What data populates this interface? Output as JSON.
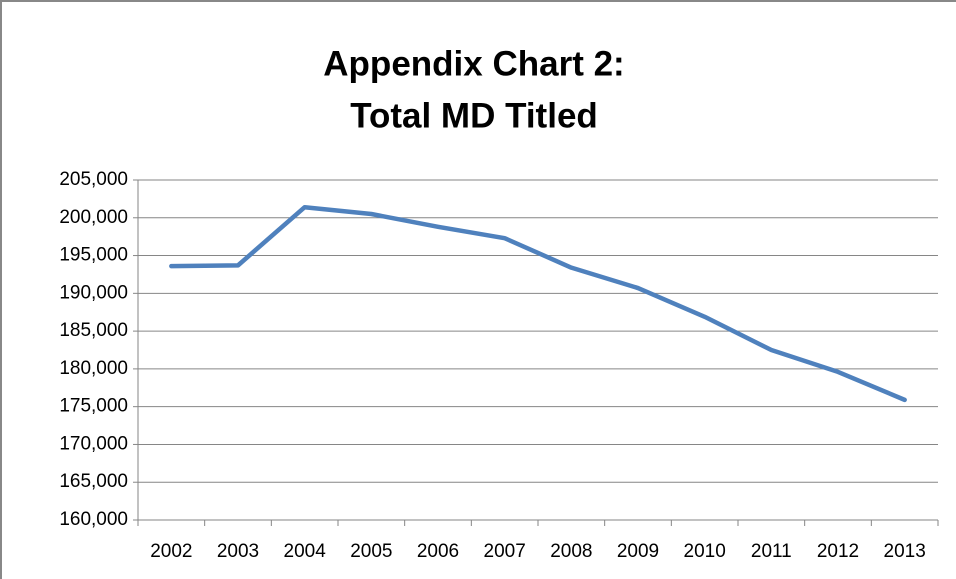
{
  "chart_data": {
    "type": "line",
    "title": [
      "Appendix Chart 2:",
      "Total MD Titled"
    ],
    "categories": [
      "2002",
      "2003",
      "2004",
      "2005",
      "2006",
      "2007",
      "2008",
      "2009",
      "2010",
      "2011",
      "2012",
      "2013"
    ],
    "series": [
      {
        "name": "Total MD Titled",
        "color": "#4f81bd",
        "values": [
          193600,
          193700,
          201400,
          200500,
          198800,
          197300,
          193400,
          190700,
          186900,
          182500,
          179600,
          175900
        ]
      }
    ],
    "ylim": [
      160000,
      205000
    ],
    "yticks": [
      {
        "value": 160000,
        "label": "160,000"
      },
      {
        "value": 165000,
        "label": "165,000"
      },
      {
        "value": 170000,
        "label": "170,000"
      },
      {
        "value": 175000,
        "label": "175,000"
      },
      {
        "value": 180000,
        "label": "180,000"
      },
      {
        "value": 185000,
        "label": "185,000"
      },
      {
        "value": 190000,
        "label": "190,000"
      },
      {
        "value": 195000,
        "label": "195,000"
      },
      {
        "value": 200000,
        "label": "200,000"
      },
      {
        "value": 205000,
        "label": "205,000"
      }
    ],
    "grid": true
  }
}
